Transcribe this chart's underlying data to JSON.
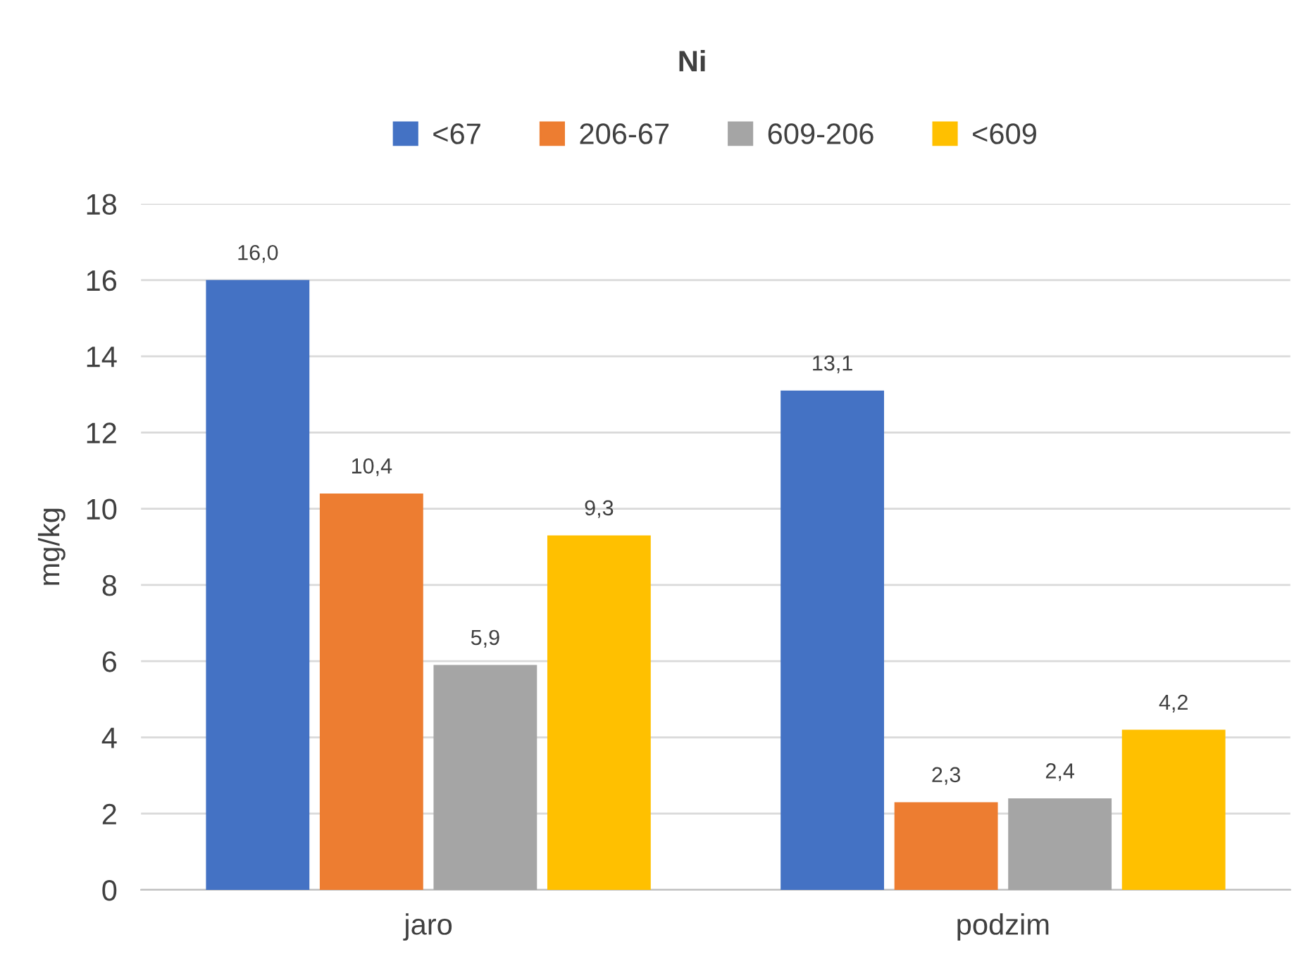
{
  "chart_data": {
    "type": "bar",
    "title": "Ni",
    "ylabel": "mg/kg",
    "categories": [
      "jaro",
      "podzim"
    ],
    "series": [
      {
        "name": "<67",
        "color": "#4472c4",
        "values": [
          16.0,
          13.1
        ],
        "value_labels": [
          "16,0",
          "13,1"
        ]
      },
      {
        "name": "206-67",
        "color": "#ed7d31",
        "values": [
          10.4,
          2.3
        ],
        "value_labels": [
          "10,4",
          "2,3"
        ]
      },
      {
        "name": "609-206",
        "color": "#a5a5a5",
        "values": [
          5.9,
          2.4
        ],
        "value_labels": [
          "5,9",
          "2,4"
        ]
      },
      {
        "name": "<609",
        "color": "#ffc000",
        "values": [
          9.3,
          4.2
        ],
        "value_labels": [
          "9,3",
          "4,2"
        ]
      }
    ],
    "ylim": [
      0,
      18
    ],
    "yticks": [
      0,
      2,
      4,
      6,
      8,
      10,
      12,
      14,
      16,
      18
    ],
    "grid": "y",
    "legend": "top"
  }
}
